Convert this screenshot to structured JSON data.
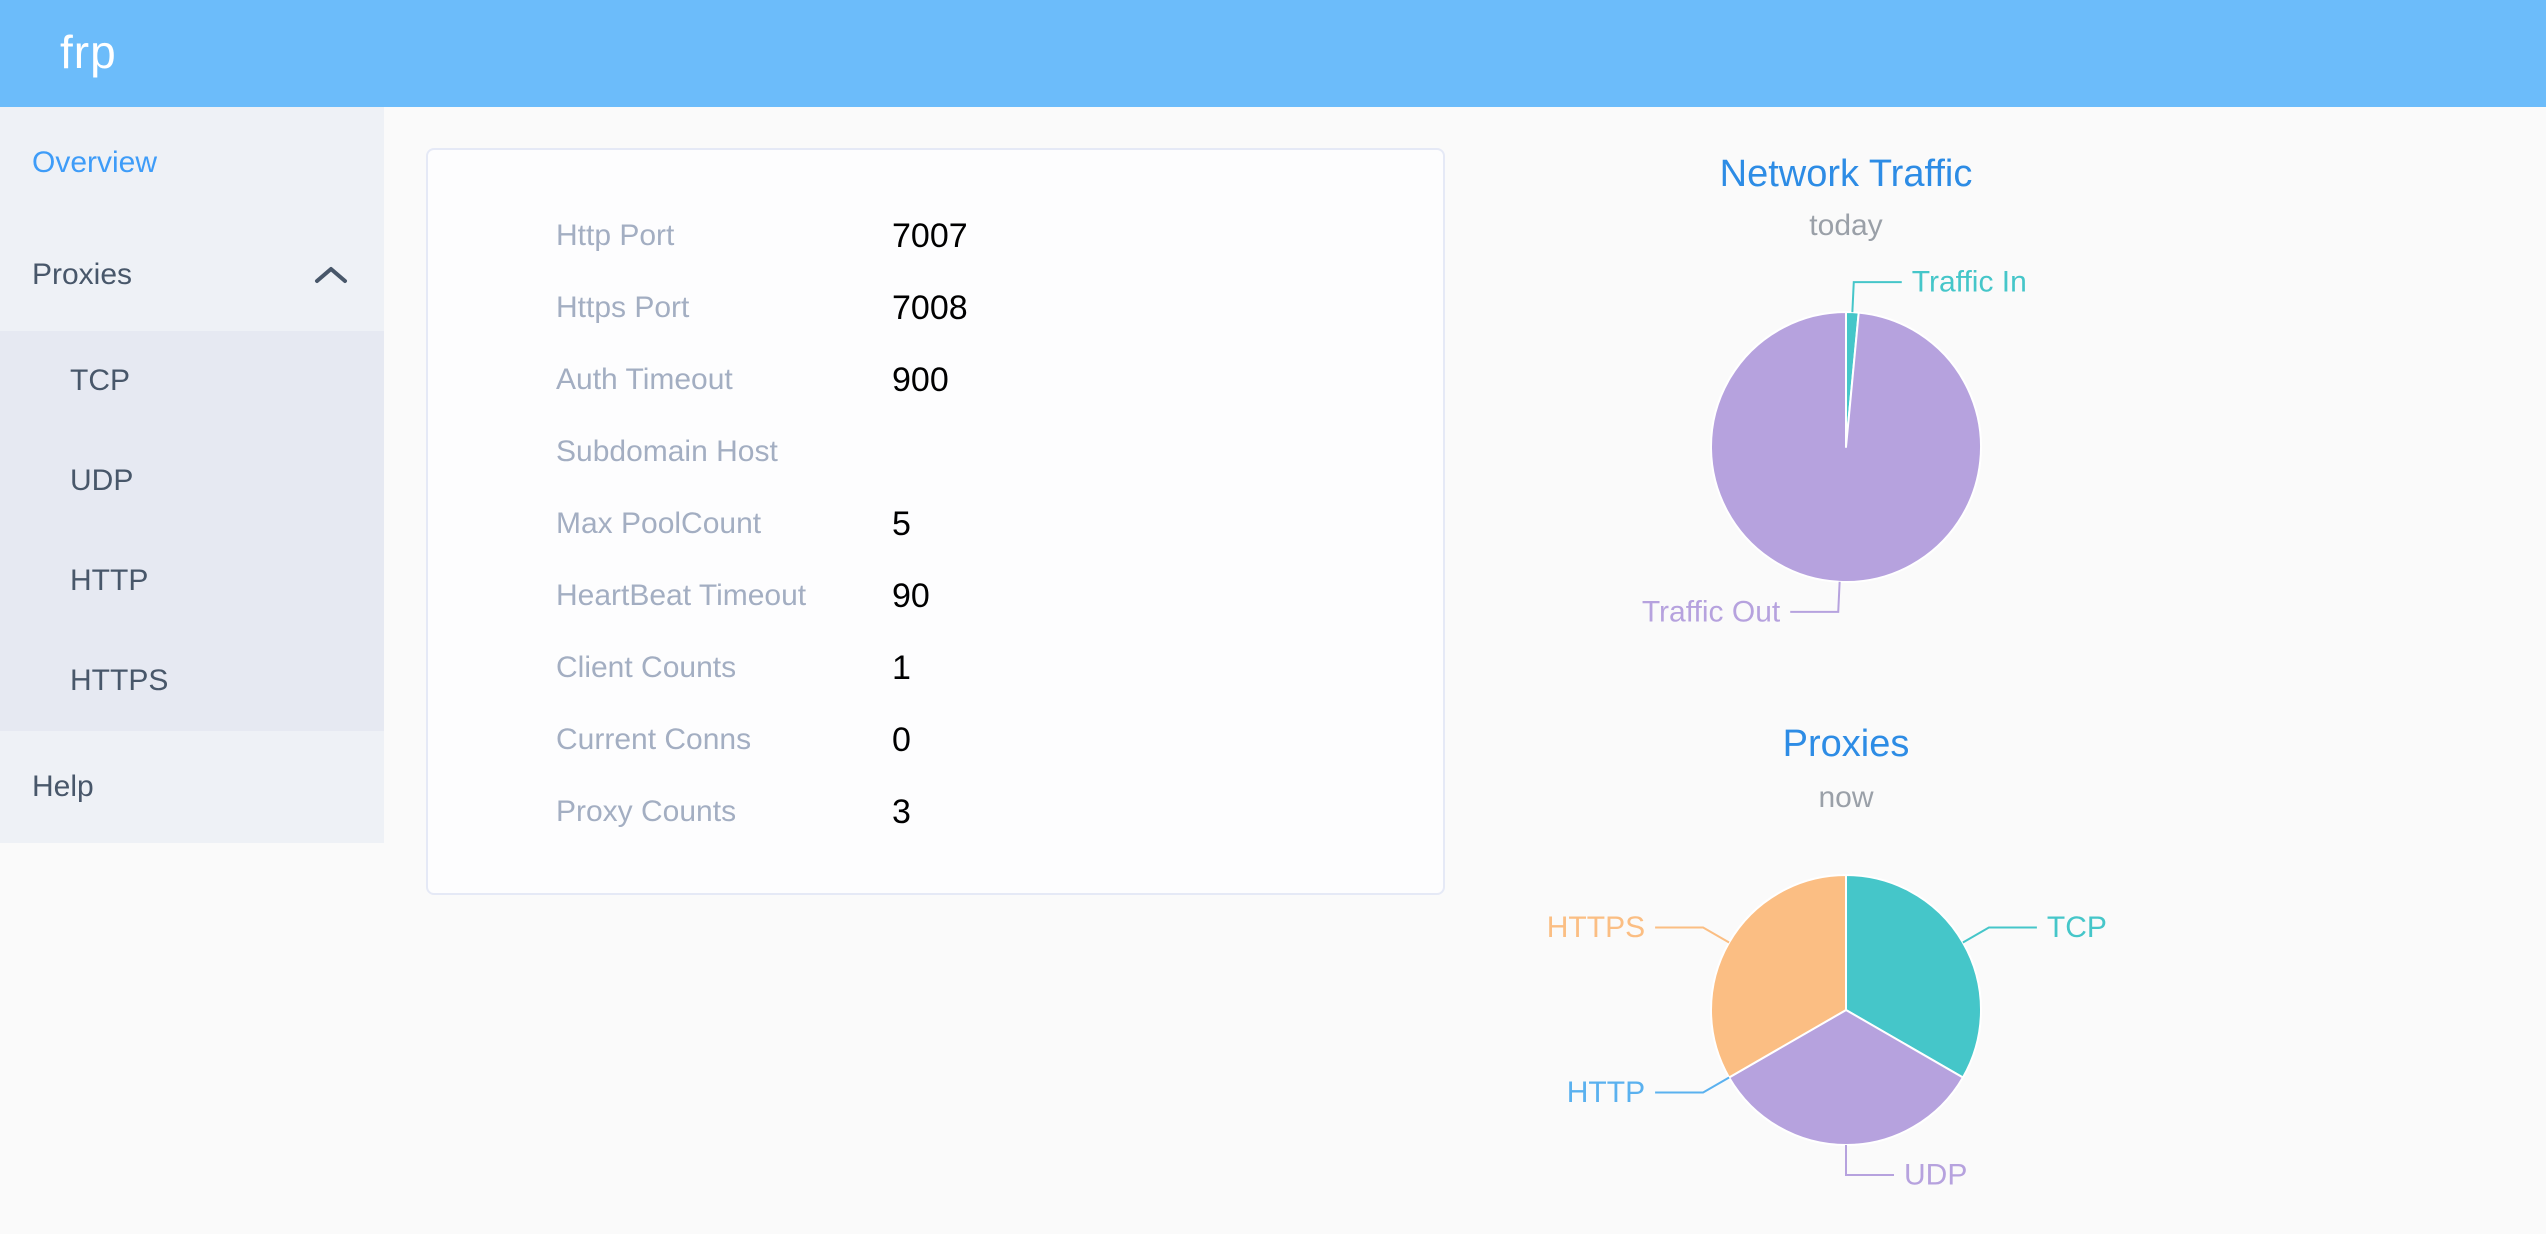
{
  "app": {
    "logo": "frp"
  },
  "colors": {
    "header_bg": "#6cbcfa",
    "chart_title_blue": "#2d8ce5",
    "active_menu_blue": "#3e9cf8",
    "teal": "#45c6c9",
    "purple": "#b6a2de",
    "blue": "#5ab1ef",
    "orange": "#fbbe83"
  },
  "sidebar": {
    "overview": "Overview",
    "proxies": "Proxies",
    "submenu": [
      "TCP",
      "UDP",
      "HTTP",
      "HTTPS"
    ],
    "help": "Help"
  },
  "server_info": {
    "rows": [
      {
        "label": "Http Port",
        "value": "7007"
      },
      {
        "label": "Https Port",
        "value": "7008"
      },
      {
        "label": "Auth Timeout",
        "value": "900"
      },
      {
        "label": "Subdomain Host",
        "value": ""
      },
      {
        "label": "Max PoolCount",
        "value": "5"
      },
      {
        "label": "HeartBeat Timeout",
        "value": "90"
      },
      {
        "label": "Client Counts",
        "value": "1"
      },
      {
        "label": "Current Conns",
        "value": "0"
      },
      {
        "label": "Proxy Counts",
        "value": "3"
      }
    ]
  },
  "chart_data": [
    {
      "type": "pie",
      "title": "Network Traffic",
      "subtitle": "today",
      "legend_position": "none",
      "labels": "outside-callout",
      "series": [
        {
          "name": "Traffic In",
          "value": 1.5,
          "color": "#45c6c9"
        },
        {
          "name": "Traffic Out",
          "value": 98.5,
          "color": "#b6a2de"
        }
      ]
    },
    {
      "type": "pie",
      "title": "Proxies",
      "subtitle": "now",
      "legend_position": "none",
      "labels": "outside-callout",
      "series": [
        {
          "name": "TCP",
          "value": 1,
          "color": "#45c6c9"
        },
        {
          "name": "UDP",
          "value": 1,
          "color": "#b6a2de"
        },
        {
          "name": "HTTP",
          "value": 0,
          "color": "#5ab1ef"
        },
        {
          "name": "HTTPS",
          "value": 1,
          "color": "#fbbe83"
        }
      ]
    }
  ]
}
